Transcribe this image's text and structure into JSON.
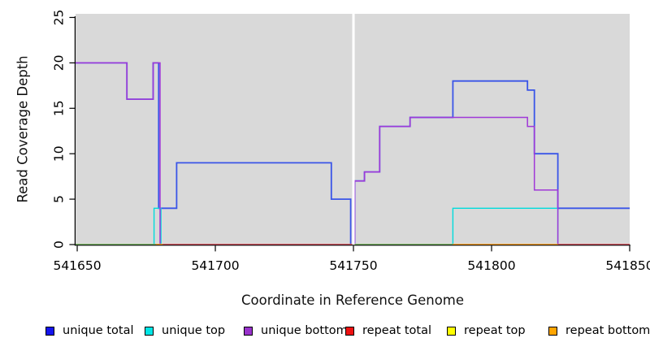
{
  "figure": {
    "background": "#FFFFFF",
    "plot_background": "#D9D9D9",
    "axis_color": "#000000"
  },
  "axes": {
    "xlabel": "Coordinate in Reference Genome",
    "ylabel": "Read Coverage Depth",
    "x_ticks": [
      {
        "value": 541650,
        "label": "541650"
      },
      {
        "value": 541700,
        "label": "541700"
      },
      {
        "value": 541750,
        "label": "541750"
      },
      {
        "value": 541800,
        "label": "541800"
      },
      {
        "value": 541850,
        "label": "541850"
      }
    ],
    "y_ticks": [
      {
        "value": 0,
        "label": "0"
      },
      {
        "value": 5,
        "label": "5"
      },
      {
        "value": 10,
        "label": "10"
      },
      {
        "value": 15,
        "label": "15"
      },
      {
        "value": 20,
        "label": "20"
      },
      {
        "value": 25,
        "label": "25"
      }
    ]
  },
  "chart_data": {
    "type": "line",
    "subtype": "step-after-coverage-plot",
    "title": "",
    "xlabel": "Coordinate in Reference Genome",
    "ylabel": "Read Coverage Depth",
    "xlim": [
      541649.4,
      541850
    ],
    "ylim": [
      0,
      25.4
    ],
    "grid": false,
    "legend_position": "bottom",
    "series": [
      {
        "name": "unique total",
        "color": "#3A55E8",
        "width": 1.8,
        "points": [
          [
            541649.4,
            20
          ],
          [
            541668,
            16
          ],
          [
            541677.5,
            20
          ],
          [
            541679.5,
            4
          ],
          [
            541686,
            9
          ],
          [
            541742,
            5
          ],
          [
            541749,
            0
          ],
          [
            541750.45,
            7
          ],
          [
            541754,
            8
          ],
          [
            541759.5,
            13
          ],
          [
            541770.5,
            14
          ],
          [
            541786,
            18
          ],
          [
            541813,
            17
          ],
          [
            541815.5,
            10
          ],
          [
            541824,
            4
          ],
          [
            541850,
            4
          ]
        ]
      },
      {
        "name": "unique top",
        "color": "#00DCDC",
        "width": 1.4,
        "points": [
          [
            541649.4,
            0
          ],
          [
            541677.8,
            4
          ],
          [
            541680.3,
            0
          ],
          [
            541786,
            4
          ],
          [
            541824,
            0
          ],
          [
            541850,
            0
          ]
        ]
      },
      {
        "name": "unique bottom",
        "color": "#A038D8",
        "width": 1.5,
        "points": [
          [
            541649.4,
            20
          ],
          [
            541668,
            16
          ],
          [
            541677.5,
            20
          ],
          [
            541680,
            0
          ],
          [
            541750.45,
            7
          ],
          [
            541754,
            8
          ],
          [
            541759.5,
            13
          ],
          [
            541770.5,
            14
          ],
          [
            541813,
            13
          ],
          [
            541815.5,
            6
          ],
          [
            541824,
            0
          ],
          [
            541850,
            0
          ]
        ]
      },
      {
        "name": "repeat total",
        "color": "#D4446C",
        "width": 1.4,
        "points": [
          [
            541649.4,
            0
          ],
          [
            541850,
            0
          ]
        ]
      },
      {
        "name": "repeat top",
        "color": "#F2E83C",
        "width": 1.4,
        "points": [
          [
            541649.4,
            0
          ],
          [
            541850,
            0
          ]
        ]
      },
      {
        "name": "repeat bottom",
        "color": "#FFA021",
        "width": 1.4,
        "points": [
          [
            541649.4,
            0
          ],
          [
            541850,
            0
          ]
        ]
      }
    ],
    "zero_line_visible_segments": [
      {
        "color": "#62BE73",
        "x": [
          541649.4,
          541678.5
        ]
      },
      {
        "color": "#FFA021",
        "x": [
          541678.5,
          541681
        ]
      },
      {
        "color": "#D4446C",
        "x": [
          541681,
          541749.55
        ]
      },
      {
        "color": "#62BE73",
        "x": [
          541750.45,
          541786
        ]
      },
      {
        "color": "#FFA021",
        "x": [
          541786,
          541824
        ]
      },
      {
        "color": "#D4446C",
        "x": [
          541824,
          541850
        ]
      }
    ],
    "white_gap_band": {
      "x": [
        541749.55,
        541750.45
      ],
      "color": "#FFFFFF"
    }
  },
  "legend": {
    "items": [
      {
        "label": "unique total",
        "color": "#1414EE"
      },
      {
        "label": "unique top",
        "color": "#00E6E6"
      },
      {
        "label": "unique bottom",
        "color": "#9932CC"
      },
      {
        "label": "repeat total",
        "color": "#EE1111"
      },
      {
        "label": "repeat top",
        "color": "#FFFF00"
      },
      {
        "label": "repeat bottom",
        "color": "#FFA500"
      }
    ]
  }
}
